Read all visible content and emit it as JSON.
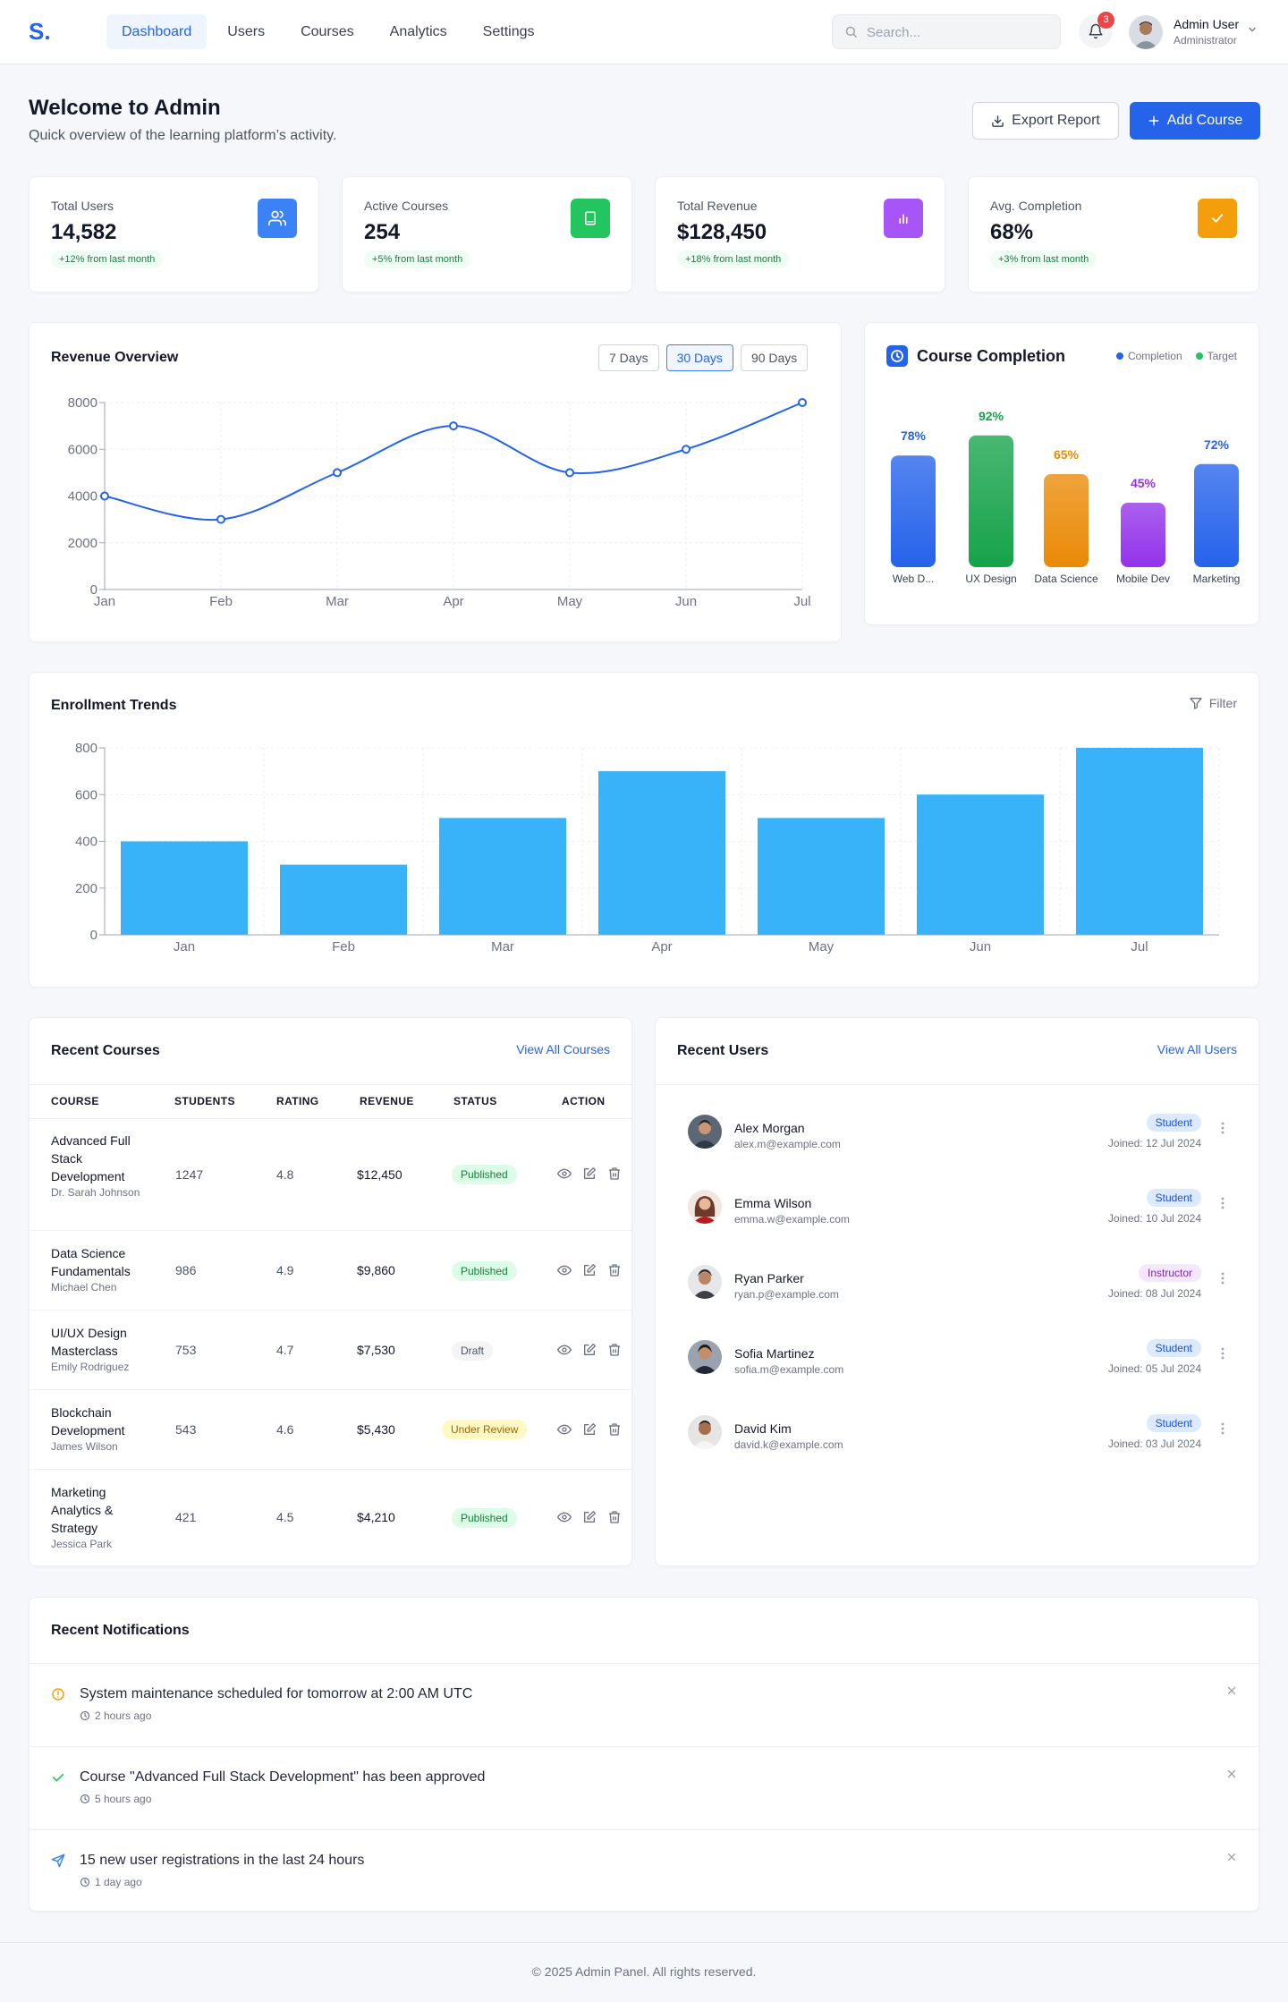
{
  "brand": {
    "logo": "S."
  },
  "nav": {
    "items": [
      "Dashboard",
      "Users",
      "Courses",
      "Analytics",
      "Settings"
    ],
    "active": 0
  },
  "search": {
    "placeholder": "Search..."
  },
  "notifications_badge": "3",
  "user": {
    "name": "Admin User",
    "role": "Administrator"
  },
  "page": {
    "title": "Welcome to Admin",
    "subtitle": "Quick overview of the learning platform’s activity."
  },
  "actions": {
    "export_label": "Export Report",
    "add_label": "Add Course"
  },
  "stats": [
    {
      "label": "Total Users",
      "value": "14,582",
      "change": "+12% from last month",
      "icon": "users-icon",
      "color": "#3b82f6"
    },
    {
      "label": "Active Courses",
      "value": "254",
      "change": "+5% from last month",
      "icon": "book-icon",
      "color": "#22c55e"
    },
    {
      "label": "Total Revenue",
      "value": "$128,450",
      "change": "+18% from last month",
      "icon": "bar-chart-icon",
      "color": "#a855f7"
    },
    {
      "label": "Avg. Completion",
      "value": "68%",
      "change": "+3% from last month",
      "icon": "check-icon",
      "color": "#f59e0b"
    }
  ],
  "revenue": {
    "title": "Revenue Overview",
    "ranges": [
      "7 Days",
      "30 Days",
      "90 Days"
    ],
    "active_range": 1
  },
  "completion": {
    "title": "Course Completion",
    "legend": [
      "Completion",
      "Target"
    ],
    "legend_colors": [
      "#2563eb",
      "#22c55e"
    ]
  },
  "enrollment": {
    "title": "Enrollment Trends",
    "filter_label": "Filter"
  },
  "chart_data": [
    {
      "type": "line",
      "title": "Revenue Overview",
      "categories": [
        "Jan",
        "Feb",
        "Mar",
        "Apr",
        "May",
        "Jun",
        "Jul"
      ],
      "values": [
        4000,
        3000,
        5000,
        7000,
        5000,
        6000,
        8000
      ],
      "yticks": [
        0,
        2000,
        4000,
        6000,
        8000
      ],
      "ylim": [
        0,
        8000
      ],
      "grid": true,
      "color": "#2563eb"
    },
    {
      "type": "bar",
      "title": "Course Completion",
      "categories": [
        "Web D...",
        "UX Design",
        "Data Science",
        "Mobile Dev",
        "Marketing"
      ],
      "values": [
        78,
        92,
        65,
        45,
        72
      ],
      "labels": [
        "78%",
        "92%",
        "65%",
        "45%",
        "72%"
      ],
      "colors": [
        "#2563eb",
        "#16a34a",
        "#ea8a06",
        "#9333ea",
        "#2563eb"
      ],
      "ylim": [
        0,
        100
      ],
      "legend": [
        "Completion",
        "Target"
      ]
    },
    {
      "type": "bar",
      "title": "Enrollment Trends",
      "categories": [
        "Jan",
        "Feb",
        "Mar",
        "Apr",
        "May",
        "Jun",
        "Jul"
      ],
      "values": [
        400,
        300,
        500,
        700,
        500,
        600,
        800
      ],
      "yticks": [
        0,
        200,
        400,
        600,
        800
      ],
      "ylim": [
        0,
        800
      ],
      "grid": true,
      "color": "#38b2f8"
    }
  ],
  "courses": {
    "title": "Recent Courses",
    "view_all": "View All Courses",
    "columns": [
      "COURSE",
      "STUDENTS",
      "RATING",
      "REVENUE",
      "STATUS",
      "ACTION"
    ],
    "rows": [
      {
        "name": "Advanced Full Stack Development",
        "instructor": "Dr. Sarah Johnson",
        "students": "1247",
        "rating": "4.8",
        "revenue": "$12,450",
        "status": "Published"
      },
      {
        "name": "Data Science Fundamentals",
        "instructor": "Michael Chen",
        "students": "986",
        "rating": "4.9",
        "revenue": "$9,860",
        "status": "Published"
      },
      {
        "name": "UI/UX Design Masterclass",
        "instructor": "Emily Rodriguez",
        "students": "753",
        "rating": "4.7",
        "revenue": "$7,530",
        "status": "Draft"
      },
      {
        "name": "Blockchain Development",
        "instructor": "James Wilson",
        "students": "543",
        "rating": "4.6",
        "revenue": "$5,430",
        "status": "Under Review"
      },
      {
        "name": "Marketing Analytics & Strategy",
        "instructor": "Jessica Park",
        "students": "421",
        "rating": "4.5",
        "revenue": "$4,210",
        "status": "Published"
      }
    ]
  },
  "users": {
    "title": "Recent Users",
    "view_all": "View All Users",
    "rows": [
      {
        "name": "Alex Morgan",
        "email": "alex.m@example.com",
        "role": "Student",
        "joined": "Joined: 12 Jul 2024"
      },
      {
        "name": "Emma Wilson",
        "email": "emma.w@example.com",
        "role": "Student",
        "joined": "Joined: 10 Jul 2024"
      },
      {
        "name": "Ryan Parker",
        "email": "ryan.p@example.com",
        "role": "Instructor",
        "joined": "Joined: 08 Jul 2024"
      },
      {
        "name": "Sofia Martinez",
        "email": "sofia.m@example.com",
        "role": "Student",
        "joined": "Joined: 05 Jul 2024"
      },
      {
        "name": "David Kim",
        "email": "david.k@example.com",
        "role": "Student",
        "joined": "Joined: 03 Jul 2024"
      }
    ]
  },
  "notifications": {
    "title": "Recent Notifications",
    "items": [
      {
        "message": "System maintenance scheduled for tomorrow at 2:00 AM UTC",
        "time": "2 hours ago",
        "icon": "alert-circle-icon",
        "color": "#f59e0b"
      },
      {
        "message": "Course \"Advanced Full Stack Development\" has been approved",
        "time": "5 hours ago",
        "icon": "check-icon",
        "color": "#22c55e"
      },
      {
        "message": "15 new user registrations in the last 24 hours",
        "time": "1 day ago",
        "icon": "send-icon",
        "color": "#3b82f6"
      }
    ]
  },
  "footer": {
    "text": "© 2025 Admin Panel. All rights reserved."
  }
}
